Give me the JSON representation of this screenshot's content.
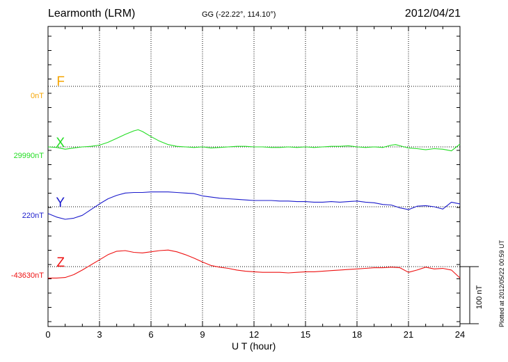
{
  "header": {
    "station": "Learmonth (LRM)",
    "coords": "GG (-22.22°, 114.10°)",
    "date": "2012/04/21"
  },
  "footer": {
    "plotted": "Plotted at 2012/05/22 00:59 UT",
    "scale_bar": "100 nT"
  },
  "chart_data": {
    "type": "line",
    "xlabel": "U T (hour)",
    "xlim": [
      0,
      24
    ],
    "xticks": [
      "0",
      "3",
      "6",
      "9",
      "12",
      "15",
      "18",
      "21",
      "24"
    ],
    "grid": true,
    "scale_nT": 100,
    "series": [
      {
        "name": "F",
        "baseline_label": "0nT",
        "color": "#f5a400",
        "values": []
      },
      {
        "name": "X",
        "baseline_label": "29990nT",
        "color": "#22dd22",
        "x": [
          0,
          0.5,
          1,
          1.5,
          2,
          2.5,
          3,
          3.5,
          4,
          4.5,
          5,
          5.25,
          5.5,
          6,
          6.5,
          7,
          7.5,
          8,
          8.5,
          9,
          9.5,
          10,
          10.5,
          11,
          11.5,
          12,
          12.5,
          13,
          13.5,
          14,
          14.5,
          15,
          15.5,
          16,
          16.5,
          17,
          17.5,
          18,
          18.5,
          19,
          19.5,
          20,
          20.25,
          20.5,
          21,
          21.5,
          22,
          22.5,
          23,
          23.5,
          24
        ],
        "values": [
          0,
          -1,
          -4,
          -2,
          0,
          1,
          3,
          8,
          15,
          22,
          28,
          30,
          27,
          18,
          10,
          4,
          1,
          0,
          -1,
          0,
          -2,
          -1,
          0,
          1,
          1,
          0,
          0,
          -1,
          -1,
          0,
          -1,
          0,
          -1,
          0,
          1,
          1,
          2,
          0,
          -1,
          0,
          -1,
          3,
          4,
          2,
          -2,
          -3,
          -5,
          -3,
          -4,
          -7,
          5
        ]
      },
      {
        "name": "Y",
        "baseline_label": "220nT",
        "color": "#1a1acc",
        "x": [
          0,
          0.5,
          1,
          1.5,
          2,
          2.5,
          3,
          3.5,
          4,
          4.5,
          5,
          5.5,
          6,
          6.5,
          7,
          7.5,
          8,
          8.5,
          9,
          9.5,
          10,
          10.5,
          11,
          11.5,
          12,
          12.5,
          13,
          13.5,
          14,
          14.5,
          15,
          15.5,
          16,
          16.5,
          17,
          17.5,
          18,
          18.5,
          19,
          19.5,
          20,
          20.5,
          21,
          21.5,
          22,
          22.5,
          23,
          23.5,
          24
        ],
        "values": [
          -12,
          -18,
          -22,
          -20,
          -15,
          -5,
          5,
          14,
          20,
          24,
          25,
          25,
          26,
          26,
          26,
          25,
          24,
          23,
          19,
          17,
          15,
          14,
          13,
          12,
          11,
          11,
          11,
          10,
          10,
          9,
          9,
          8,
          8,
          9,
          8,
          9,
          10,
          8,
          7,
          4,
          3,
          -2,
          -5,
          1,
          2,
          0,
          -4,
          8,
          5
        ]
      },
      {
        "name": "Z",
        "baseline_label": "-43630nT",
        "color": "#ee1111",
        "x": [
          0,
          0.5,
          1,
          1.5,
          2,
          2.5,
          3,
          3.5,
          4,
          4.5,
          5,
          5.5,
          6,
          6.5,
          7,
          7.5,
          8,
          8.5,
          9,
          9.5,
          10,
          10.5,
          11,
          11.5,
          12,
          12.5,
          13,
          13.5,
          14,
          14.5,
          15,
          15.5,
          16,
          16.5,
          17,
          17.5,
          18,
          18.5,
          19,
          19.5,
          20,
          20.5,
          21,
          21.5,
          22,
          22.5,
          23,
          23.5,
          24
        ],
        "values": [
          -20,
          -20,
          -19,
          -14,
          -6,
          3,
          12,
          21,
          27,
          28,
          25,
          24,
          26,
          28,
          29,
          26,
          21,
          15,
          8,
          2,
          -1,
          -3,
          -6,
          -8,
          -9,
          -10,
          -10,
          -10,
          -11,
          -10,
          -9,
          -9,
          -8,
          -7,
          -6,
          -5,
          -4,
          -3,
          -2,
          -2,
          -1,
          -2,
          -10,
          -6,
          -1,
          -4,
          -3,
          -6,
          -20
        ]
      }
    ]
  }
}
